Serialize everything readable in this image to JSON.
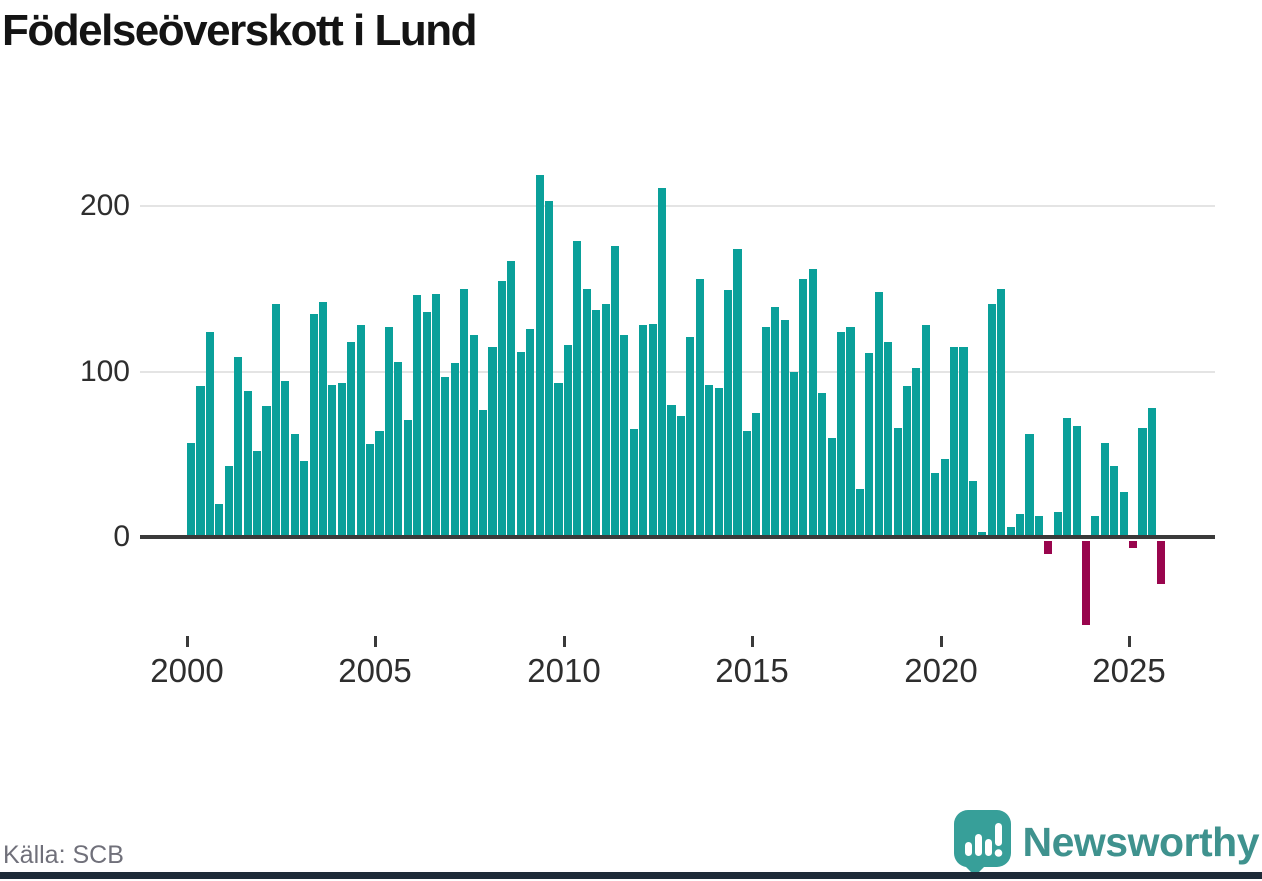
{
  "title": "Födelseöverskott i Lund",
  "source": "Källa: SCB",
  "branding": {
    "name": "Newsworthy"
  },
  "colors": {
    "bar_positive": "#0aa09a",
    "bar_negative": "#99054d",
    "axis": "#3a3a3a",
    "grid": "#e4e4e4",
    "text": "#2e2e2e",
    "muted_text": "#70707a",
    "brand_text": "#3f928e",
    "brand_bubble": "#379f99",
    "footer_strip": "#1e2b38"
  },
  "chart_data": {
    "type": "bar",
    "title": "Födelseöverskott i Lund",
    "x_start": "2000-Q1",
    "frequency": "quarterly",
    "values": [
      57,
      91,
      124,
      20,
      43,
      109,
      88,
      52,
      79,
      141,
      94,
      62,
      46,
      135,
      142,
      92,
      93,
      118,
      128,
      56,
      64,
      127,
      106,
      71,
      146,
      136,
      147,
      97,
      105,
      150,
      122,
      77,
      115,
      155,
      167,
      112,
      126,
      219,
      203,
      93,
      116,
      179,
      150,
      137,
      141,
      176,
      122,
      65,
      128,
      129,
      211,
      80,
      73,
      121,
      156,
      92,
      90,
      149,
      174,
      64,
      75,
      127,
      139,
      131,
      100,
      156,
      162,
      87,
      60,
      124,
      127,
      29,
      111,
      148,
      118,
      66,
      91,
      102,
      128,
      39,
      47,
      115,
      115,
      34,
      3,
      141,
      150,
      6,
      14,
      62,
      13,
      -8,
      15,
      72,
      67,
      -51,
      13,
      57,
      43,
      27,
      -4,
      66,
      78,
      -26
    ],
    "x_ticks": [
      2000,
      2005,
      2010,
      2015,
      2020,
      2025
    ],
    "y_ticks": [
      0,
      100,
      200
    ],
    "ylim": [
      -60,
      233
    ],
    "grid": "horizontal",
    "legend": "none"
  }
}
